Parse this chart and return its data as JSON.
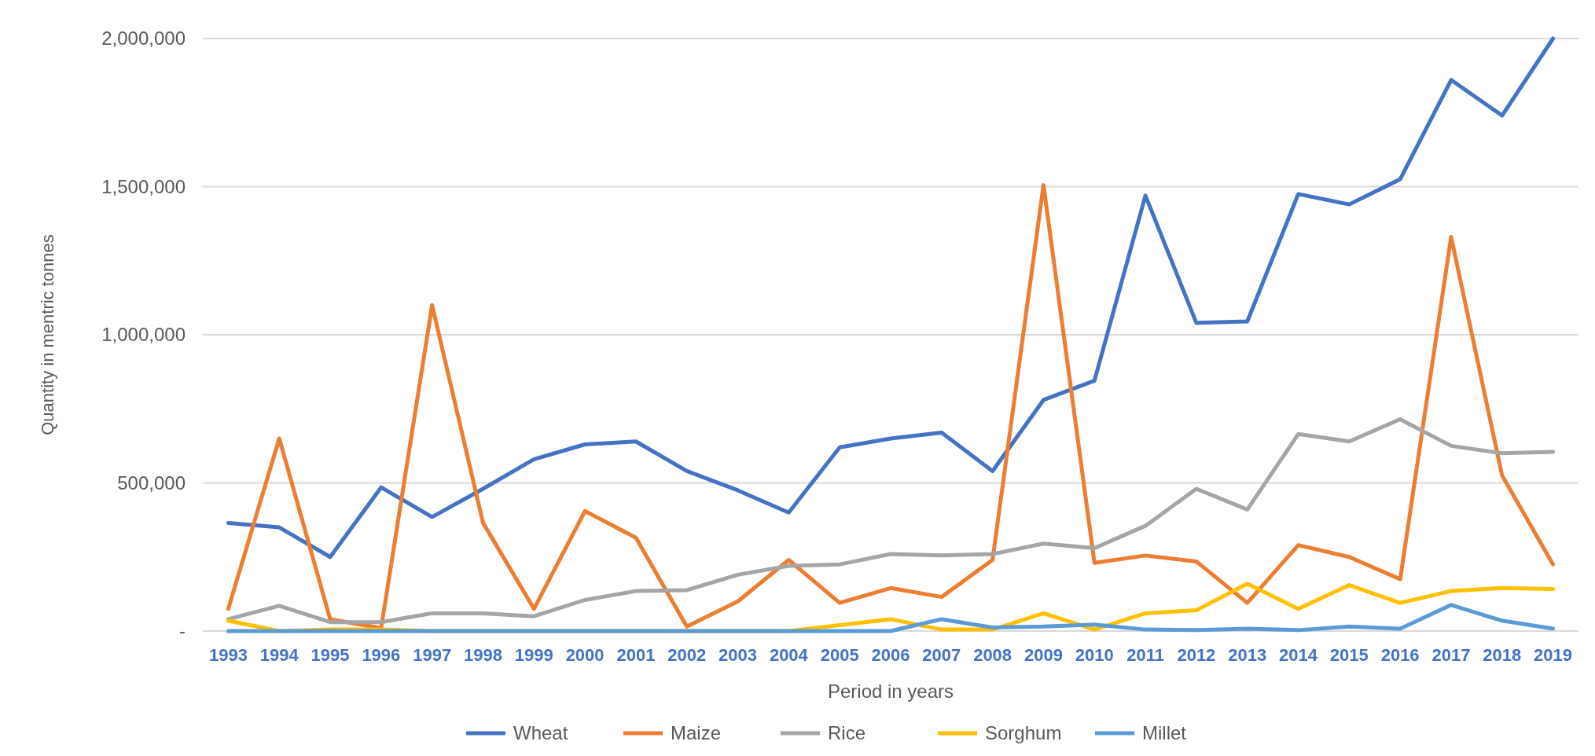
{
  "chart_data": {
    "type": "line",
    "xlabel": "Period in years",
    "ylabel": "Quantity in mentric tonnes",
    "categories": [
      "1993",
      "1994",
      "1995",
      "1996",
      "1997",
      "1998",
      "1999",
      "2000",
      "2001",
      "2002",
      "2003",
      "2004",
      "2005",
      "2006",
      "2007",
      "2008",
      "2009",
      "2010",
      "2011",
      "2012",
      "2013",
      "2014",
      "2015",
      "2016",
      "2017",
      "2018",
      "2019"
    ],
    "series": [
      {
        "name": "Wheat",
        "color": "#4472c4",
        "values": [
          365000,
          350000,
          250000,
          485000,
          385000,
          480000,
          580000,
          630000,
          640000,
          540000,
          475000,
          400000,
          620000,
          650000,
          670000,
          540000,
          780000,
          845000,
          1470000,
          1040000,
          1045000,
          1475000,
          1440000,
          1525000,
          1860000,
          1740000,
          2000000
        ]
      },
      {
        "name": "Maize",
        "color": "#ed7d31",
        "values": [
          75000,
          650000,
          40000,
          10000,
          1100000,
          365000,
          75000,
          405000,
          315000,
          15000,
          100000,
          240000,
          95000,
          145000,
          115000,
          240000,
          1505000,
          230000,
          255000,
          235000,
          95000,
          290000,
          250000,
          175000,
          1330000,
          525000,
          225000
        ]
      },
      {
        "name": "Rice",
        "color": "#a5a5a5",
        "values": [
          40000,
          85000,
          30000,
          30000,
          60000,
          60000,
          50000,
          105000,
          135000,
          138000,
          190000,
          220000,
          225000,
          260000,
          255000,
          260000,
          295000,
          280000,
          355000,
          480000,
          410000,
          665000,
          640000,
          715000,
          625000,
          600000,
          605000
        ]
      },
      {
        "name": "Sorghum",
        "color": "#ffc000",
        "values": [
          35000,
          0,
          5000,
          5000,
          0,
          0,
          0,
          0,
          0,
          0,
          0,
          0,
          20000,
          40000,
          5000,
          5000,
          60000,
          5000,
          60000,
          70000,
          160000,
          75000,
          155000,
          95000,
          135000,
          145000,
          142000
        ]
      },
      {
        "name": "Millet",
        "color": "#5b9bd5",
        "values": [
          0,
          0,
          0,
          0,
          0,
          0,
          0,
          0,
          0,
          0,
          0,
          0,
          0,
          0,
          40000,
          12000,
          15000,
          22000,
          5000,
          3000,
          8000,
          3000,
          15000,
          8000,
          88000,
          35000,
          8000
        ]
      }
    ],
    "ylim": [
      0,
      2000000
    ],
    "yticks": [
      {
        "value": 0,
        "label": "-"
      },
      {
        "value": 500000,
        "label": "500,000"
      },
      {
        "value": 1000000,
        "label": "1,000,000"
      },
      {
        "value": 1500000,
        "label": "1,500,000"
      },
      {
        "value": 2000000,
        "label": "2,000,000"
      }
    ],
    "grid": "y",
    "legend": "bottom",
    "line_style": "solid",
    "marker": "none"
  }
}
